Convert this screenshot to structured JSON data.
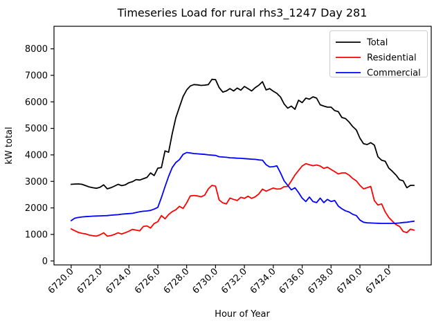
{
  "figure": {
    "title": "Timeseries Load for rural rhs3_1247  Day 281",
    "xlabel": "Hour of Year",
    "ylabel": "kW total",
    "background": "#ffffff",
    "frame_color": "#000000"
  },
  "legend": {
    "position": "upper right",
    "border_color": "#cccccc",
    "entries": [
      {
        "label": "Total",
        "color": "#000000"
      },
      {
        "label": "Residential",
        "color": "#ff0000"
      },
      {
        "label": "Commercial",
        "color": "#0000ff"
      }
    ]
  },
  "chart_data": {
    "type": "line",
    "title": "Timeseries Load for rural rhs3_1247  Day 281",
    "xlabel": "Hour of Year",
    "ylabel": "kW total",
    "grid": false,
    "legend_position": "upper right",
    "xlim": [
      6718.81,
      6744.94
    ],
    "ylim": [
      -150,
      8850
    ],
    "xticks": [
      6720,
      6722,
      6724,
      6726,
      6728,
      6730,
      6732,
      6734,
      6736,
      6738,
      6740,
      6742
    ],
    "xtick_labels": [
      "6720.0",
      "6722.0",
      "6724.0",
      "6726.0",
      "6728.0",
      "6730.0",
      "6732.0",
      "6734.0",
      "6736.0",
      "6738.0",
      "6740.0",
      "6742.0"
    ],
    "yticks": [
      0,
      1000,
      2000,
      3000,
      4000,
      5000,
      6000,
      7000,
      8000
    ],
    "ytick_labels": [
      "0",
      "1000",
      "2000",
      "3000",
      "4000",
      "5000",
      "6000",
      "7000",
      "8000"
    ],
    "x_hours": [
      6720.0,
      6720.25,
      6720.5,
      6720.75,
      6721.0,
      6721.25,
      6721.5,
      6721.75,
      6722.0,
      6722.25,
      6722.5,
      6722.75,
      6723.0,
      6723.25,
      6723.5,
      6723.75,
      6724.0,
      6724.25,
      6724.5,
      6724.75,
      6725.0,
      6725.25,
      6725.5,
      6725.75,
      6726.0,
      6726.25,
      6726.5,
      6726.75,
      6727.0,
      6727.25,
      6727.5,
      6727.75,
      6728.0,
      6728.25,
      6728.5,
      6728.75,
      6729.0,
      6729.25,
      6729.5,
      6729.75,
      6730.0,
      6730.25,
      6730.5,
      6730.75,
      6731.0,
      6731.25,
      6731.5,
      6731.75,
      6732.0,
      6732.25,
      6732.5,
      6732.75,
      6733.0,
      6733.25,
      6733.5,
      6733.75,
      6734.0,
      6734.25,
      6734.5,
      6734.75,
      6735.0,
      6735.25,
      6735.5,
      6735.75,
      6736.0,
      6736.25,
      6736.5,
      6736.75,
      6737.0,
      6737.25,
      6737.5,
      6737.75,
      6738.0,
      6738.25,
      6738.5,
      6738.75,
      6739.0,
      6739.25,
      6739.5,
      6739.75,
      6740.0,
      6740.25,
      6740.5,
      6740.75,
      6741.0,
      6741.25,
      6741.5,
      6741.75,
      6742.0,
      6742.25,
      6742.5,
      6742.75,
      6743.0,
      6743.25,
      6743.5,
      6743.75
    ],
    "series": [
      {
        "name": "Total",
        "color": "#000000",
        "values": [
          2890,
          2900,
          2905,
          2890,
          2840,
          2790,
          2760,
          2740,
          2780,
          2870,
          2720,
          2760,
          2820,
          2890,
          2840,
          2870,
          2950,
          2990,
          3070,
          3050,
          3100,
          3150,
          3320,
          3220,
          3500,
          3520,
          4150,
          4100,
          4800,
          5400,
          5800,
          6200,
          6450,
          6600,
          6650,
          6640,
          6620,
          6630,
          6650,
          6850,
          6840,
          6540,
          6370,
          6410,
          6500,
          6410,
          6520,
          6440,
          6580,
          6500,
          6410,
          6540,
          6630,
          6760,
          6450,
          6500,
          6400,
          6320,
          6180,
          5920,
          5760,
          5840,
          5720,
          6060,
          5970,
          6140,
          6100,
          6190,
          6140,
          5890,
          5840,
          5800,
          5800,
          5670,
          5630,
          5410,
          5370,
          5240,
          5070,
          4940,
          4630,
          4420,
          4390,
          4460,
          4370,
          3930,
          3800,
          3760,
          3500,
          3380,
          3240,
          3060,
          3020,
          2760,
          2850,
          2850
        ]
      },
      {
        "name": "Residential",
        "color": "#ff0000",
        "values": [
          1210,
          1140,
          1075,
          1040,
          1020,
          975,
          950,
          935,
          985,
          1060,
          935,
          955,
          1000,
          1060,
          1015,
          1065,
          1120,
          1190,
          1160,
          1135,
          1300,
          1320,
          1240,
          1410,
          1480,
          1710,
          1590,
          1750,
          1860,
          1930,
          2060,
          1980,
          2190,
          2450,
          2470,
          2450,
          2420,
          2480,
          2720,
          2850,
          2820,
          2300,
          2190,
          2150,
          2370,
          2320,
          2280,
          2400,
          2360,
          2440,
          2360,
          2420,
          2530,
          2710,
          2630,
          2690,
          2750,
          2710,
          2720,
          2800,
          2810,
          3020,
          3240,
          3410,
          3580,
          3670,
          3630,
          3590,
          3620,
          3580,
          3490,
          3540,
          3450,
          3370,
          3280,
          3320,
          3320,
          3240,
          3110,
          3020,
          2850,
          2720,
          2760,
          2810,
          2280,
          2110,
          2150,
          1850,
          1640,
          1500,
          1370,
          1300,
          1110,
          1070,
          1200,
          1160
        ]
      },
      {
        "name": "Commercial",
        "color": "#0000ff",
        "values": [
          1520,
          1610,
          1640,
          1660,
          1670,
          1680,
          1690,
          1695,
          1700,
          1705,
          1710,
          1725,
          1735,
          1745,
          1765,
          1775,
          1785,
          1795,
          1825,
          1855,
          1875,
          1885,
          1905,
          1955,
          2020,
          2390,
          2800,
          3190,
          3520,
          3710,
          3820,
          4020,
          4090,
          4070,
          4050,
          4040,
          4030,
          4020,
          4000,
          3990,
          3980,
          3930,
          3920,
          3910,
          3890,
          3885,
          3875,
          3870,
          3860,
          3850,
          3840,
          3830,
          3810,
          3800,
          3630,
          3545,
          3555,
          3585,
          3320,
          3020,
          2850,
          2680,
          2760,
          2580,
          2370,
          2240,
          2410,
          2240,
          2200,
          2370,
          2200,
          2320,
          2240,
          2280,
          2070,
          1965,
          1890,
          1845,
          1760,
          1710,
          1540,
          1460,
          1440,
          1430,
          1425,
          1420,
          1415,
          1415,
          1415,
          1415,
          1420,
          1430,
          1450,
          1460,
          1480,
          1500
        ]
      }
    ]
  }
}
